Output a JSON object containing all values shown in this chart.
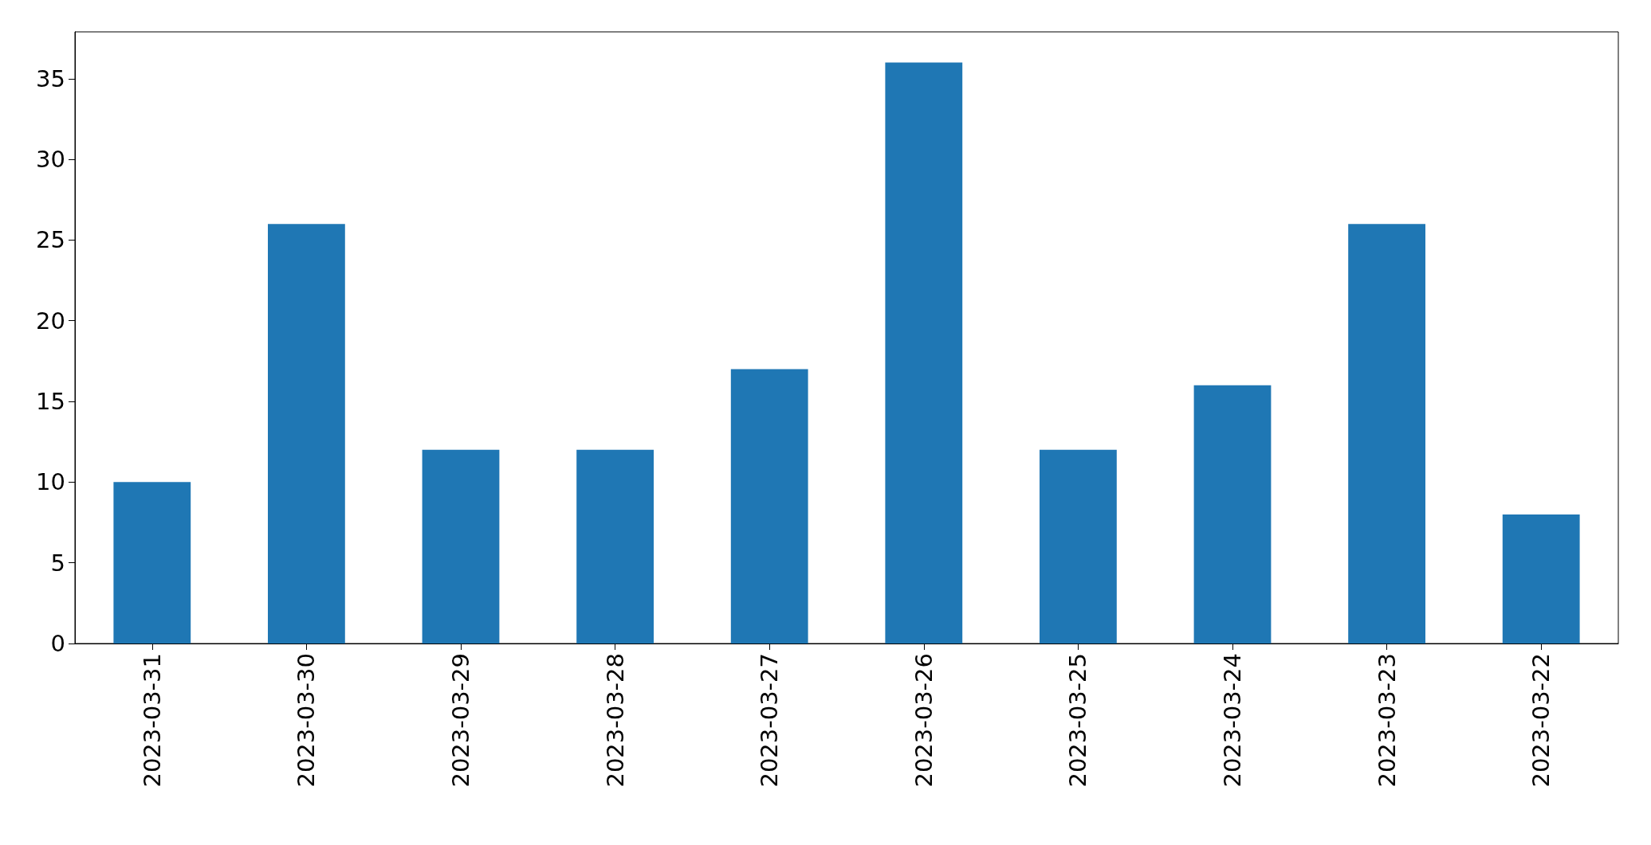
{
  "chart_data": {
    "type": "bar",
    "categories": [
      "2023-03-31",
      "2023-03-30",
      "2023-03-29",
      "2023-03-28",
      "2023-03-27",
      "2023-03-26",
      "2023-03-25",
      "2023-03-24",
      "2023-03-23",
      "2023-03-22"
    ],
    "values": [
      10,
      26,
      12,
      12,
      17,
      36,
      12,
      16,
      26,
      8
    ],
    "color": "#1f77b4",
    "ylim": [
      0,
      37.9
    ],
    "yticks": [
      0,
      5,
      10,
      15,
      20,
      25,
      30,
      35
    ],
    "grid": false
  }
}
